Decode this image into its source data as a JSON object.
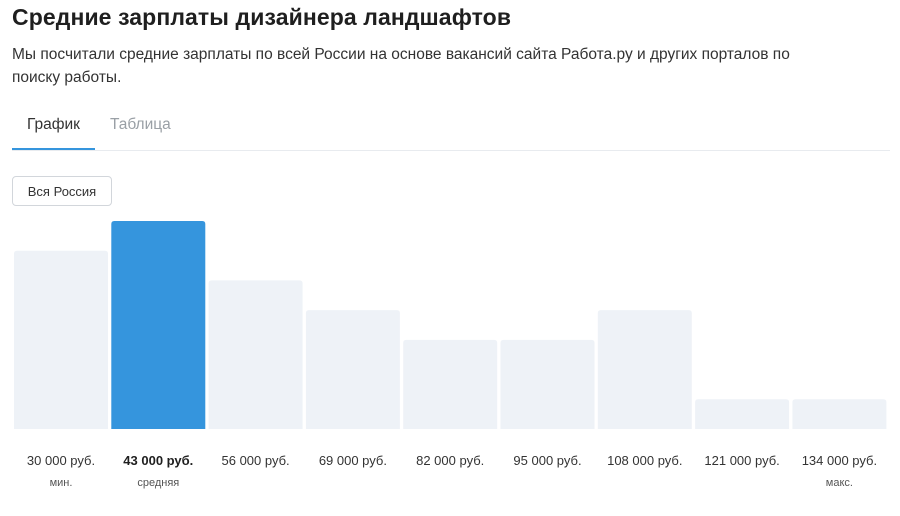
{
  "header": {
    "title": "Средние зарплаты дизайнера ландшафтов",
    "subtitle": "Мы посчитали средние зарплаты по всей России на основе вакансий сайта Работа.ру и других порталов по поиску работы."
  },
  "tabs": [
    {
      "label": "График",
      "active": true
    },
    {
      "label": "Таблица",
      "active": false
    }
  ],
  "region_button": {
    "label": "Вся Россия"
  },
  "colors": {
    "highlight_bar": "#3595dd",
    "bar": "#eef2f7",
    "tab_underline": "#3595dd"
  },
  "chart_data": {
    "type": "bar",
    "categories": [
      "30 000 руб.",
      "43 000 руб.",
      "56 000 руб.",
      "69 000 руб.",
      "82 000 руб.",
      "95 000 руб.",
      "108 000 руб.",
      "121 000 руб.",
      "134 000 руб."
    ],
    "values": [
      6,
      7,
      5,
      4,
      3,
      3,
      4,
      1,
      1
    ],
    "highlight_index": 1,
    "sublabels": [
      "мин.",
      "средняя",
      "",
      "",
      "",
      "",
      "",
      "",
      "макс."
    ],
    "ylim": [
      0,
      7
    ],
    "grid": false,
    "y_axis_shown": false
  }
}
